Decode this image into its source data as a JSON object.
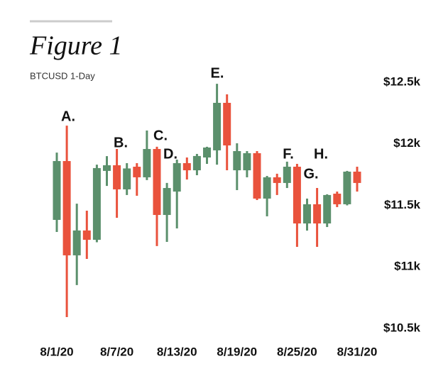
{
  "chart_data": {
    "type": "candlestick",
    "title": "Figure 1",
    "subtitle": "BTCUSD 1-Day",
    "categories": [
      "8/1/20",
      null,
      null,
      null,
      null,
      null,
      "8/7/20",
      null,
      null,
      null,
      null,
      null,
      "8/13/20",
      null,
      null,
      null,
      null,
      null,
      "8/19/20",
      null,
      null,
      null,
      null,
      null,
      "8/25/20",
      null,
      null,
      null,
      null,
      null,
      "8/31/20"
    ],
    "open": [
      11382,
      11860,
      11094,
      11296,
      11220,
      11780,
      11826,
      11630,
      11814,
      11728,
      11958,
      11422,
      11612,
      11843,
      11785,
      11889,
      11947,
      12333,
      11785,
      11785,
      11924,
      11555,
      11728,
      11682,
      11814,
      11353,
      11509,
      11353,
      11595,
      11509,
      11774
    ],
    "high": [
      11929,
      12148,
      11514,
      11457,
      11831,
      11900,
      11958,
      11843,
      11843,
      12108,
      11976,
      11682,
      11872,
      11889,
      11918,
      11976,
      12488,
      12402,
      12004,
      11941,
      11941,
      11739,
      11757,
      11855,
      11837,
      11555,
      11641,
      11590,
      11612,
      11780,
      11814
    ],
    "low": [
      11284,
      10592,
      10852,
      11065,
      11200,
      11658,
      11399,
      11584,
      11578,
      11705,
      11169,
      11203,
      11313,
      11710,
      11745,
      11837,
      11831,
      11785,
      11624,
      11728,
      11543,
      11411,
      11584,
      11641,
      11163,
      11295,
      11163,
      11324,
      11486,
      11500,
      11612
    ],
    "close": [
      11860,
      11094,
      11296,
      11220,
      11803,
      11826,
      11630,
      11800,
      11728,
      11958,
      11422,
      11641,
      11843,
      11785,
      11901,
      11970,
      12333,
      11987,
      11941,
      11924,
      11555,
      11728,
      11682,
      11814,
      11353,
      11509,
      11353,
      11584,
      11509,
      11774,
      11682
    ],
    "up_color": "#5b906c",
    "down_color": "#e9523c",
    "ylim": [
      10500,
      12500
    ],
    "yticks": [
      {
        "value": 10500,
        "label": "$10.5k"
      },
      {
        "value": 11000,
        "label": "$11k"
      },
      {
        "value": 11500,
        "label": "$11.5k"
      },
      {
        "value": 12000,
        "label": "$12k"
      },
      {
        "value": 12500,
        "label": "$12.5k"
      }
    ],
    "annotations": [
      "A.",
      "B.",
      "C.",
      "D.",
      "E.",
      "F.",
      "G.",
      "H."
    ]
  }
}
